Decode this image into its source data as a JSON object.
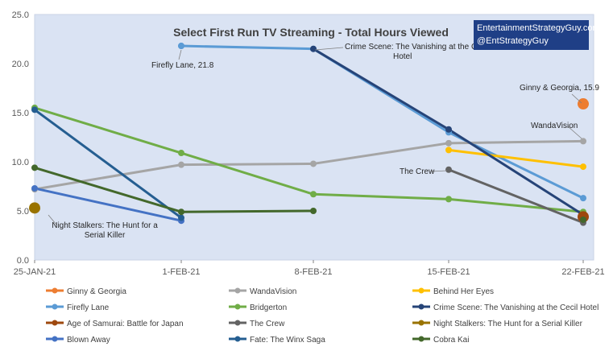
{
  "watermark": {
    "line1": "EntertainmentStrategyGuy.com",
    "line2": "@EntStrategyGuy"
  },
  "chart_data": {
    "type": "line",
    "title": "Select First Run TV Streaming - Total Hours Viewed",
    "xlabel": "",
    "ylabel": "",
    "categories": [
      "25-JAN-21",
      "1-FEB-21",
      "8-FEB-21",
      "15-FEB-21",
      "22-FEB-21"
    ],
    "ylim": [
      0,
      25
    ],
    "yticks": [
      "0.0",
      "5.0",
      "10.0",
      "15.0",
      "20.0",
      "25.0"
    ],
    "grid": false,
    "legend_position": "bottom",
    "series": [
      {
        "name": "Ginny & Georgia",
        "color": "#ed7d31",
        "values": [
          null,
          null,
          null,
          null,
          15.9
        ]
      },
      {
        "name": "WandaVision",
        "color": "#a5a5a5",
        "values": [
          7.2,
          9.7,
          9.8,
          11.9,
          12.1
        ]
      },
      {
        "name": "Behind Her Eyes",
        "color": "#ffc000",
        "values": [
          null,
          null,
          null,
          11.2,
          9.5
        ]
      },
      {
        "name": "Firefly Lane",
        "color": "#5b9bd5",
        "values": [
          null,
          21.8,
          null,
          null,
          null
        ]
      },
      {
        "name": "Bridgerton",
        "color": "#70ad47",
        "values": [
          15.5,
          10.9,
          6.7,
          6.2,
          4.9
        ]
      },
      {
        "name": "Crime Scene: The Vanishing at the Cecil Hotel",
        "color": "#264478",
        "values": [
          null,
          null,
          21.5,
          13.3,
          4.6
        ]
      },
      {
        "name": "Age of Samurai: Battle for Japan",
        "color": "#9e480e",
        "values": [
          null,
          null,
          null,
          null,
          4.4
        ]
      },
      {
        "name": "The Crew",
        "color": "#636363",
        "values": [
          null,
          null,
          null,
          9.2,
          3.8
        ]
      },
      {
        "name": "Night Stalkers: The Hunt for a Serial Killer",
        "color": "#997300",
        "values": [
          5.3,
          null,
          null,
          null,
          null
        ]
      },
      {
        "name": "Blown Away",
        "color": "#4472c4",
        "values": [
          7.3,
          4.0,
          null,
          null,
          null
        ]
      },
      {
        "name": "Fate: The Winx Saga",
        "color": "#255e91",
        "values": [
          15.3,
          4.3,
          null,
          null,
          null
        ]
      },
      {
        "name": "Cobra Kai",
        "color": "#43682b",
        "values": [
          9.4,
          4.9,
          5.0,
          null,
          4.1
        ]
      }
    ],
    "extra_segments": [
      {
        "series": "Firefly Lane",
        "values": [
          null,
          21.8,
          21.5,
          13.0,
          6.3
        ]
      }
    ],
    "annotations": [
      {
        "text": "Firefly Lane, 21.8"
      },
      {
        "text": "Crime Scene: The Vanishing at the Cecil",
        "text2": "Hotel"
      },
      {
        "text": "Ginny & Georgia, 15.9"
      },
      {
        "text": "WandaVision"
      },
      {
        "text": "The Crew"
      },
      {
        "text": "Night Stalkers: The Hunt for a",
        "text2": "Serial Killer"
      }
    ]
  }
}
